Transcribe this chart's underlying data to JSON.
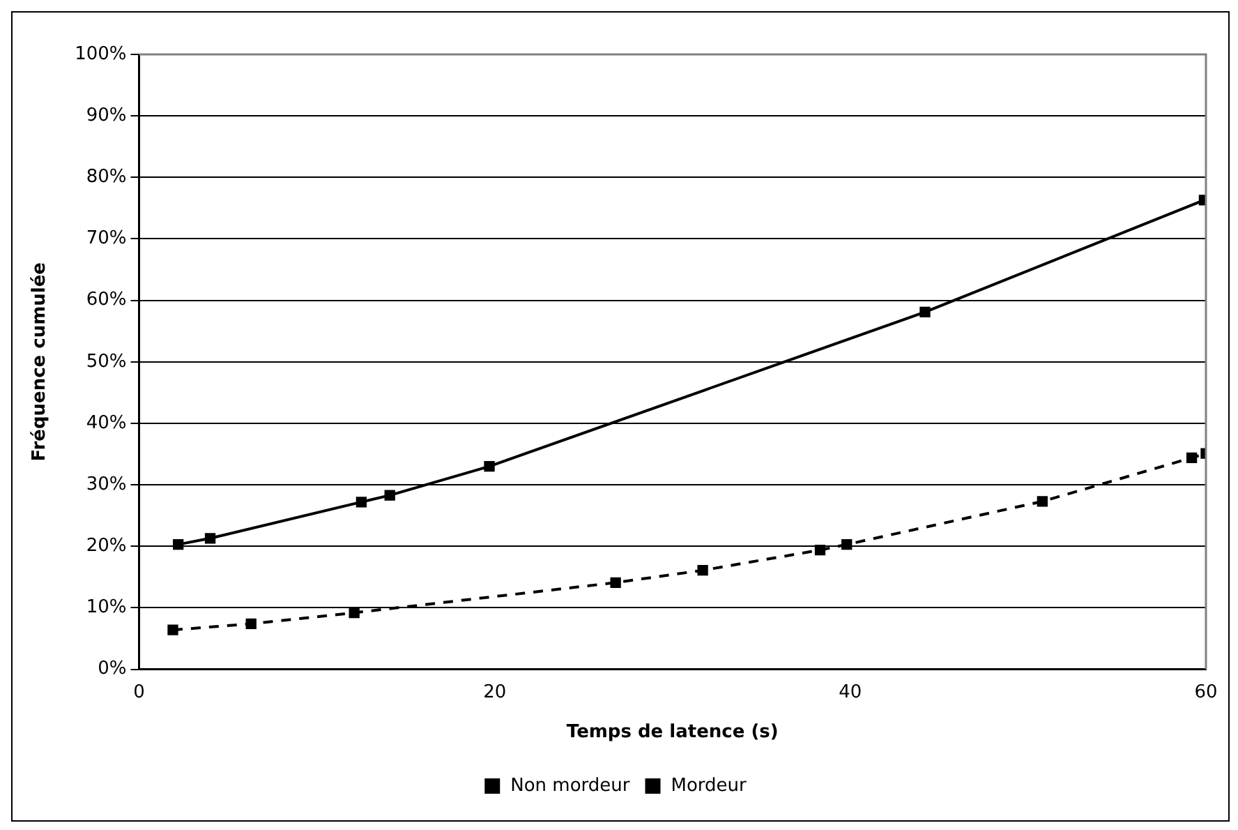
{
  "chart_data": {
    "type": "line",
    "xlabel": "Temps de latence (s)",
    "ylabel": "Fréquence cumulée",
    "xlim": [
      0,
      60
    ],
    "xticks": [
      0,
      20,
      40,
      60
    ],
    "ylim": [
      0,
      100
    ],
    "yticks": [
      {
        "value": 0,
        "label": "0%"
      },
      {
        "value": 10,
        "label": "10%"
      },
      {
        "value": 20,
        "label": "20%"
      },
      {
        "value": 30,
        "label": "30%"
      },
      {
        "value": 40,
        "label": "40%"
      },
      {
        "value": 50,
        "label": "50%"
      },
      {
        "value": 60,
        "label": "60%"
      },
      {
        "value": 70,
        "label": "70%"
      },
      {
        "value": 80,
        "label": "80%"
      },
      {
        "value": 90,
        "label": "90%"
      },
      {
        "value": 100,
        "label": "100%"
      }
    ],
    "grid": "y",
    "legend": "bottom",
    "marker": "square",
    "series": [
      {
        "name": "Non mordeur",
        "color": "#000000",
        "line_style": "dashed",
        "x": [
          1.9,
          6.3,
          12.1,
          26.8,
          31.7,
          38.3,
          39.8,
          50.8,
          59.2,
          60
        ],
        "values": [
          6.4,
          7.4,
          9.2,
          14.1,
          16.1,
          19.4,
          20.3,
          27.3,
          34.4,
          35.1
        ]
      },
      {
        "name": "Mordeur",
        "color": "#000000",
        "line_style": "solid",
        "x": [
          2.2,
          4.0,
          12.5,
          14.1,
          19.7,
          44.2,
          59.9
        ],
        "values": [
          20.3,
          21.3,
          27.2,
          28.3,
          33.0,
          58.1,
          76.3
        ]
      }
    ]
  }
}
